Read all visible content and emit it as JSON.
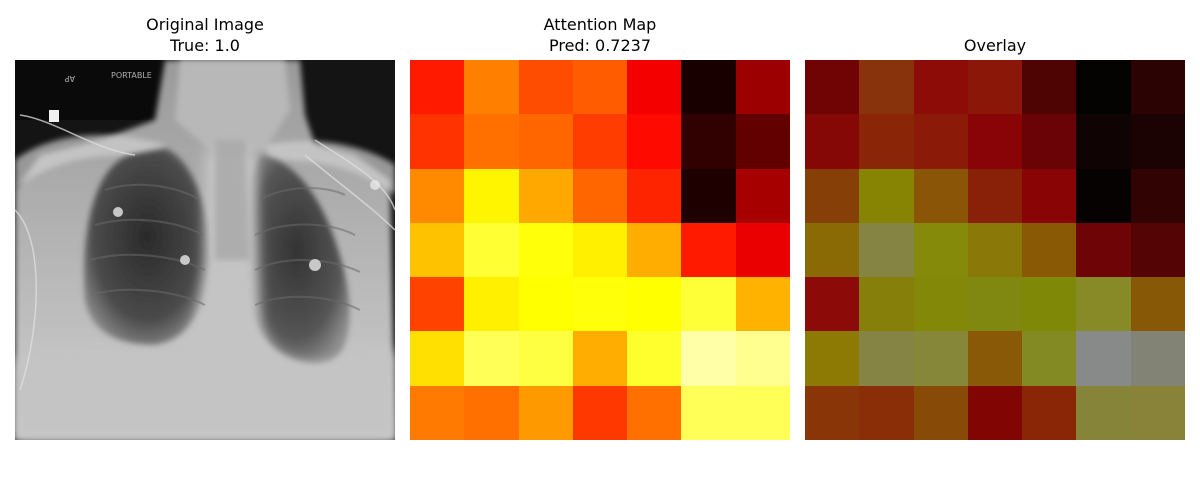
{
  "panels": [
    {
      "title": "Original Image",
      "subtitle": "True: 1.0",
      "image_labels": [
        "AP",
        "PORTABLE"
      ]
    },
    {
      "title": "Attention Map",
      "subtitle": "Pred: 0.7237"
    },
    {
      "title": "Overlay",
      "subtitle": ""
    }
  ],
  "chart_data": {
    "type": "heatmap",
    "rows": 7,
    "cols": 7,
    "colormap": "hot",
    "values": [
      [
        0.55,
        0.75,
        0.65,
        0.68,
        0.48,
        0.03,
        0.3
      ],
      [
        0.6,
        0.72,
        0.7,
        0.62,
        0.52,
        0.08,
        0.18
      ],
      [
        0.77,
        0.98,
        0.83,
        0.7,
        0.57,
        0.04,
        0.32
      ],
      [
        0.88,
        1.1,
        1.02,
        0.97,
        0.84,
        0.55,
        0.46
      ],
      [
        0.63,
        0.97,
        1.0,
        1.02,
        1.0,
        1.11,
        0.85
      ],
      [
        0.94,
        1.17,
        1.13,
        0.84,
        1.09,
        1.33,
        1.28
      ],
      [
        0.74,
        0.72,
        0.8,
        0.61,
        0.72,
        1.17,
        1.17
      ]
    ],
    "overlay_colors": [
      [
        "#700404",
        "#88330b",
        "#8e0c07",
        "#8a1707",
        "#4f0404",
        "#050202",
        "#2c0303"
      ],
      [
        "#860806",
        "#8a2607",
        "#8b1a08",
        "#880406",
        "#690305",
        "#0f0303",
        "#1c0303"
      ],
      [
        "#863f07",
        "#868402",
        "#8a5506",
        "#892108",
        "#890505",
        "#060202",
        "#320303"
      ],
      [
        "#8a6a05",
        "#868443",
        "#868a0a",
        "#8a7908",
        "#8a5905",
        "#6e0405",
        "#540404"
      ],
      [
        "#8c0b08",
        "#867f0a",
        "#848808",
        "#818811",
        "#7f8807",
        "#878a26",
        "#875907"
      ],
      [
        "#8c7a05",
        "#868444",
        "#868738",
        "#8a5908",
        "#838a24",
        "#888a8a",
        "#828374"
      ],
      [
        "#893507",
        "#8a2e07",
        "#884a07",
        "#800503",
        "#8a2506",
        "#868439",
        "#898239"
      ]
    ]
  }
}
